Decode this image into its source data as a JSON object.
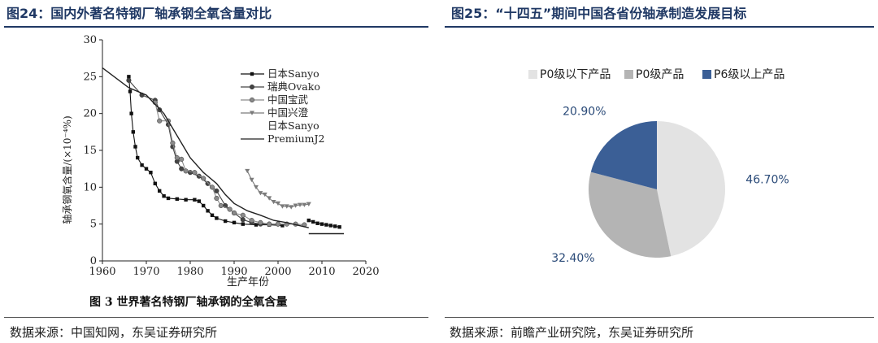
{
  "left_panel": {
    "title": "图24：国内外著名特钢厂轴承钢全氧含量对比",
    "source": "数据来源：中国知网，东吴证券研究所"
  },
  "right_panel": {
    "title": "图25：“十四五”期间中国各省份轴承制造发展目标",
    "source": "数据来源：前瞻产业研究院，东吴证券研究所"
  },
  "chart_data": [
    {
      "type": "line",
      "caption": "图 3    世界著名特钢厂轴承钢的全氧含量",
      "xlabel": "生产年份",
      "ylabel": "轴承钢氧含量/(×10⁻⁴%)",
      "xlim": [
        1960,
        2020
      ],
      "ylim": [
        0,
        30
      ],
      "xticks": [
        "1960",
        "1970",
        "1980",
        "1990",
        "2000",
        "2010",
        "2020"
      ],
      "yticks": [
        "0",
        "5",
        "10",
        "15",
        "20",
        "25",
        "30"
      ],
      "colors": {
        "sanyo": "#111111",
        "ovako": "#444444",
        "baowu": "#8a8a8a",
        "xingcheng": "#7a7a7a",
        "premium": "#222222"
      },
      "series": [
        {
          "key": "sanyo",
          "name": "日本Sanyo",
          "marker": "square",
          "points": [
            [
              1966,
              25
            ],
            [
              1966.3,
              23
            ],
            [
              1966.6,
              20
            ],
            [
              1967,
              17.5
            ],
            [
              1967.5,
              15.5
            ],
            [
              1968,
              14
            ],
            [
              1969,
              13
            ],
            [
              1970,
              12.5
            ],
            [
              1971,
              12
            ],
            [
              1972,
              10.5
            ],
            [
              1973,
              9.5
            ],
            [
              1974,
              8.8
            ],
            [
              1975,
              8.5
            ],
            [
              1977,
              8.4
            ],
            [
              1979,
              8.3
            ],
            [
              1981,
              8.3
            ],
            [
              1982,
              8.1
            ],
            [
              1983,
              7.5
            ],
            [
              1984,
              6.8
            ],
            [
              1985,
              6.2
            ],
            [
              1986,
              5.8
            ],
            [
              1988,
              5.4
            ],
            [
              1990,
              5.2
            ],
            [
              1992,
              5.0
            ],
            [
              1995,
              4.9
            ],
            [
              1998,
              4.9
            ],
            [
              2001,
              4.8
            ]
          ]
        },
        {
          "key": "ovako",
          "name": "瑞典Ovako",
          "marker": "circle",
          "points": [
            [
              1966,
              24.5
            ],
            [
              1969,
              22.5
            ],
            [
              1972,
              21.8
            ],
            [
              1973,
              20.5
            ],
            [
              1975,
              18.5
            ],
            [
              1976,
              15.5
            ],
            [
              1977,
              13.5
            ],
            [
              1978,
              12.5
            ],
            [
              1980,
              12.0
            ],
            [
              1982,
              11.5
            ],
            [
              1984,
              10.5
            ],
            [
              1986,
              9.5
            ],
            [
              1988,
              7.5
            ],
            [
              1990,
              6.5
            ],
            [
              1992,
              5.6
            ],
            [
              1994,
              5.2
            ],
            [
              1996,
              5.0
            ],
            [
              1998,
              5.0
            ],
            [
              2000,
              5.0
            ]
          ]
        },
        {
          "key": "baowu",
          "name": "中国宝武",
          "marker": "circle",
          "points": [
            [
              1972,
              21.5
            ],
            [
              1973,
              19
            ],
            [
              1975,
              19
            ],
            [
              1976,
              16
            ],
            [
              1977,
              14
            ],
            [
              1978,
              13.8
            ],
            [
              1979,
              12.2
            ],
            [
              1981,
              12
            ],
            [
              1983,
              11.2
            ],
            [
              1985,
              10
            ],
            [
              1986,
              8.5
            ],
            [
              1987,
              7.5
            ],
            [
              1989,
              7
            ],
            [
              1990,
              6.5
            ],
            [
              1992,
              6.2
            ],
            [
              1994,
              5.5
            ],
            [
              1996,
              5.2
            ],
            [
              1998,
              5.0
            ],
            [
              2000,
              5.0
            ],
            [
              2002,
              5.0
            ],
            [
              2004,
              5.0
            ],
            [
              2006,
              4.9
            ]
          ]
        },
        {
          "key": "xingcheng",
          "name": "中国兴澄",
          "marker": "triangle",
          "points": [
            [
              1993,
              12.2
            ],
            [
              1994,
              11
            ],
            [
              1995,
              10
            ],
            [
              1996,
              9.2
            ],
            [
              1997,
              9
            ],
            [
              1998,
              8.5
            ],
            [
              1999,
              8
            ],
            [
              2000,
              7.8
            ],
            [
              2001,
              7.4
            ],
            [
              2002,
              7.4
            ],
            [
              2003,
              7.3
            ],
            [
              2004,
              7.5
            ],
            [
              2005,
              7.6
            ],
            [
              2006,
              7.6
            ],
            [
              2007,
              7.7
            ]
          ]
        },
        {
          "key": "sanyo2",
          "name": "日本Sanyo",
          "marker": "square",
          "points": [
            [
              2007,
              5.5
            ],
            [
              2008,
              5.3
            ],
            [
              2009,
              5.1
            ],
            [
              2010,
              5.0
            ],
            [
              2011,
              4.9
            ],
            [
              2012,
              4.8
            ],
            [
              2013,
              4.7
            ],
            [
              2014,
              4.6
            ]
          ]
        },
        {
          "key": "premium",
          "name": "PremiumJ2",
          "marker": "none",
          "points": [
            [
              1960,
              26.2
            ],
            [
              1966,
              23.5
            ],
            [
              1970,
              22.5
            ],
            [
              1974,
              20
            ],
            [
              1977,
              17
            ],
            [
              1980,
              14
            ],
            [
              1983,
              12
            ],
            [
              1986,
              10.5
            ],
            [
              1988,
              9
            ],
            [
              1990,
              7.8
            ],
            [
              1993,
              6.8
            ],
            [
              1996,
              6.2
            ],
            [
              1999,
              5.5
            ],
            [
              2002,
              5.2
            ],
            [
              2007,
              4.5
            ]
          ]
        },
        {
          "key": "premium_bar",
          "name": "",
          "marker": "none",
          "points": [
            [
              2007,
              3.7
            ],
            [
              2015,
              3.7
            ]
          ]
        }
      ]
    },
    {
      "type": "pie",
      "categories": [
        "P0级以下产品",
        "P0级产品",
        "P6级以上产品"
      ],
      "values": [
        46.7,
        32.4,
        20.9
      ],
      "labels": [
        "46.70%",
        "32.40%",
        "20.90%"
      ],
      "colors": [
        "#e3e3e3",
        "#b4b4b4",
        "#3b5f96"
      ],
      "label_color": "#2a4a78",
      "legend_position": "top"
    }
  ]
}
